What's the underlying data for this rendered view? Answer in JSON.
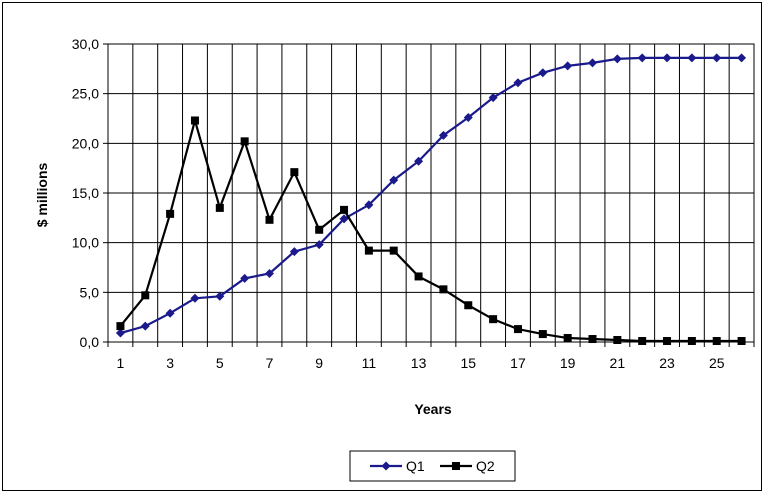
{
  "chart_data": {
    "type": "line",
    "title": "",
    "xlabel": "Years",
    "ylabel": "$ millions",
    "x": [
      1,
      2,
      3,
      4,
      5,
      6,
      7,
      8,
      9,
      10,
      11,
      12,
      13,
      14,
      15,
      16,
      17,
      18,
      19,
      20,
      21,
      22,
      23,
      24,
      25,
      26
    ],
    "x_tick_labels": [
      "1",
      "3",
      "5",
      "7",
      "9",
      "11",
      "13",
      "15",
      "17",
      "19",
      "21",
      "23",
      "25"
    ],
    "x_tick_values": [
      1,
      3,
      5,
      7,
      9,
      11,
      13,
      15,
      17,
      19,
      21,
      23,
      25
    ],
    "y_tick_labels": [
      "0,0",
      "5,0",
      "10,0",
      "15,0",
      "20,0",
      "25,0",
      "30,0"
    ],
    "y_tick_values": [
      0,
      5,
      10,
      15,
      20,
      25,
      30
    ],
    "ylim": [
      0,
      30
    ],
    "grid": true,
    "legend_position": "bottom-center",
    "series": [
      {
        "name": "Q1",
        "color": "#1a1a8c",
        "marker": "diamond",
        "values": [
          0.9,
          1.6,
          2.9,
          4.4,
          4.6,
          6.4,
          6.9,
          9.1,
          9.8,
          12.4,
          13.8,
          16.3,
          18.2,
          20.8,
          22.6,
          24.6,
          26.1,
          27.1,
          27.8,
          28.1,
          28.5,
          28.6,
          28.6,
          28.6,
          28.6,
          28.6
        ]
      },
      {
        "name": "Q2",
        "color": "#000000",
        "marker": "square",
        "values": [
          1.6,
          4.7,
          12.9,
          22.3,
          13.5,
          20.2,
          12.3,
          17.1,
          11.3,
          13.3,
          9.2,
          9.2,
          6.6,
          5.3,
          3.7,
          2.3,
          1.3,
          0.8,
          0.4,
          0.3,
          0.2,
          0.1,
          0.1,
          0.1,
          0.1,
          0.1
        ]
      }
    ]
  }
}
